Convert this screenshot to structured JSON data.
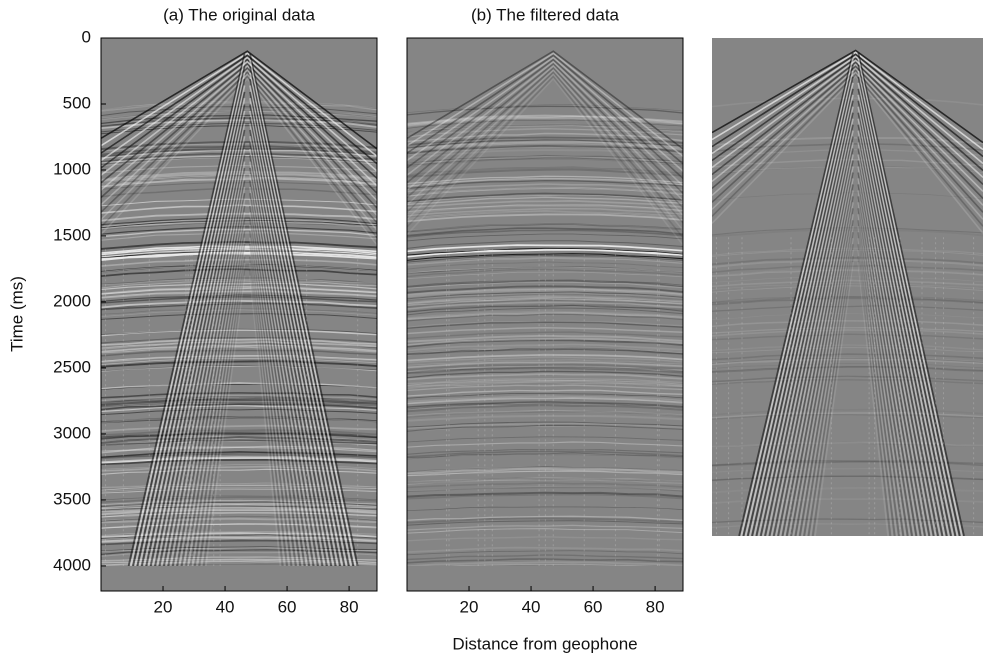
{
  "chart_data": [
    {
      "type": "image",
      "title": "(a) The original data",
      "ylabel": "Time (ms)",
      "xlim": [
        0,
        89
      ],
      "xticks": [
        20,
        40,
        60,
        80
      ],
      "ylim": [
        0,
        4190
      ],
      "yticks": [
        0,
        500,
        1000,
        1500,
        2000,
        2500,
        3000,
        3500,
        4000
      ]
    },
    {
      "type": "image",
      "title": "(b) The filtered data",
      "xlabel": "Distance from geophone",
      "xlim": [
        0,
        89
      ],
      "xticks": [
        20,
        40,
        60,
        80
      ],
      "ylim": [
        0,
        4190
      ]
    },
    {
      "type": "image"
    }
  ]
}
